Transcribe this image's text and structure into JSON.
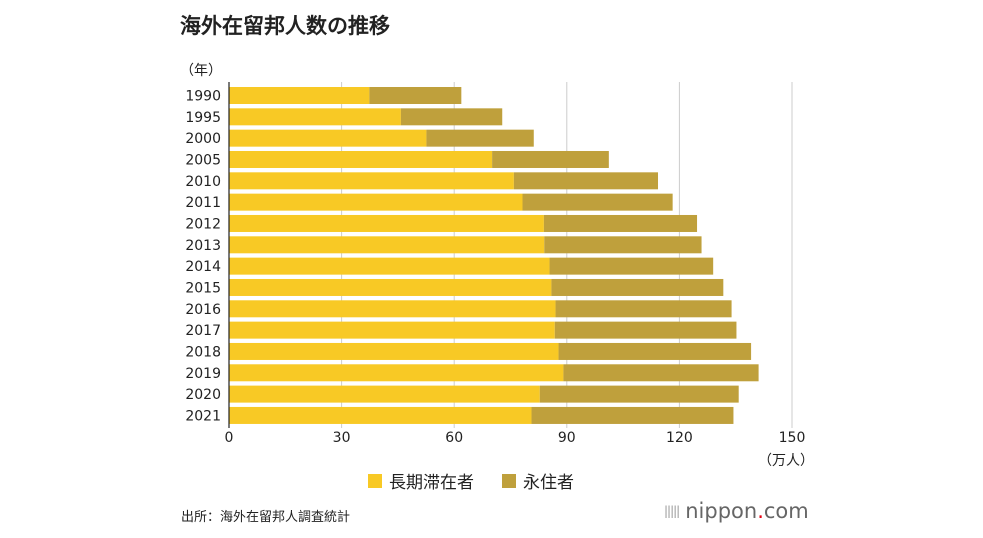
{
  "chart_data": {
    "type": "bar",
    "orientation": "horizontal",
    "stacked": true,
    "title": "海外在留邦人数の推移",
    "ylabel": "（年）",
    "xlabel": "（万人）",
    "xlim": [
      0,
      150
    ],
    "xticks": [
      0,
      30,
      60,
      90,
      120,
      150
    ],
    "grid": true,
    "legend_position": "bottom",
    "categories": [
      "1990",
      "1995",
      "2000",
      "2005",
      "2010",
      "2011",
      "2012",
      "2013",
      "2014",
      "2015",
      "2016",
      "2017",
      "2018",
      "2019",
      "2020",
      "2021"
    ],
    "series": [
      {
        "name": "長期滞在者",
        "color": "#f8c925",
        "values": [
          37.4,
          45.8,
          52.6,
          70.1,
          75.9,
          78.2,
          83.9,
          84.0,
          85.4,
          85.9,
          87.0,
          86.8,
          87.8,
          89.1,
          82.8,
          80.6
        ]
      },
      {
        "name": "永住者",
        "color": "#bfa03c",
        "values": [
          24.5,
          27.0,
          28.6,
          31.1,
          38.4,
          40.0,
          40.8,
          41.9,
          43.6,
          45.8,
          46.9,
          48.4,
          51.3,
          52.0,
          53.0,
          53.8
        ]
      }
    ]
  },
  "source": "出所：海外在留邦人調査統計",
  "logo": {
    "name": "nippon",
    "dot": ".",
    "tld": "com"
  }
}
